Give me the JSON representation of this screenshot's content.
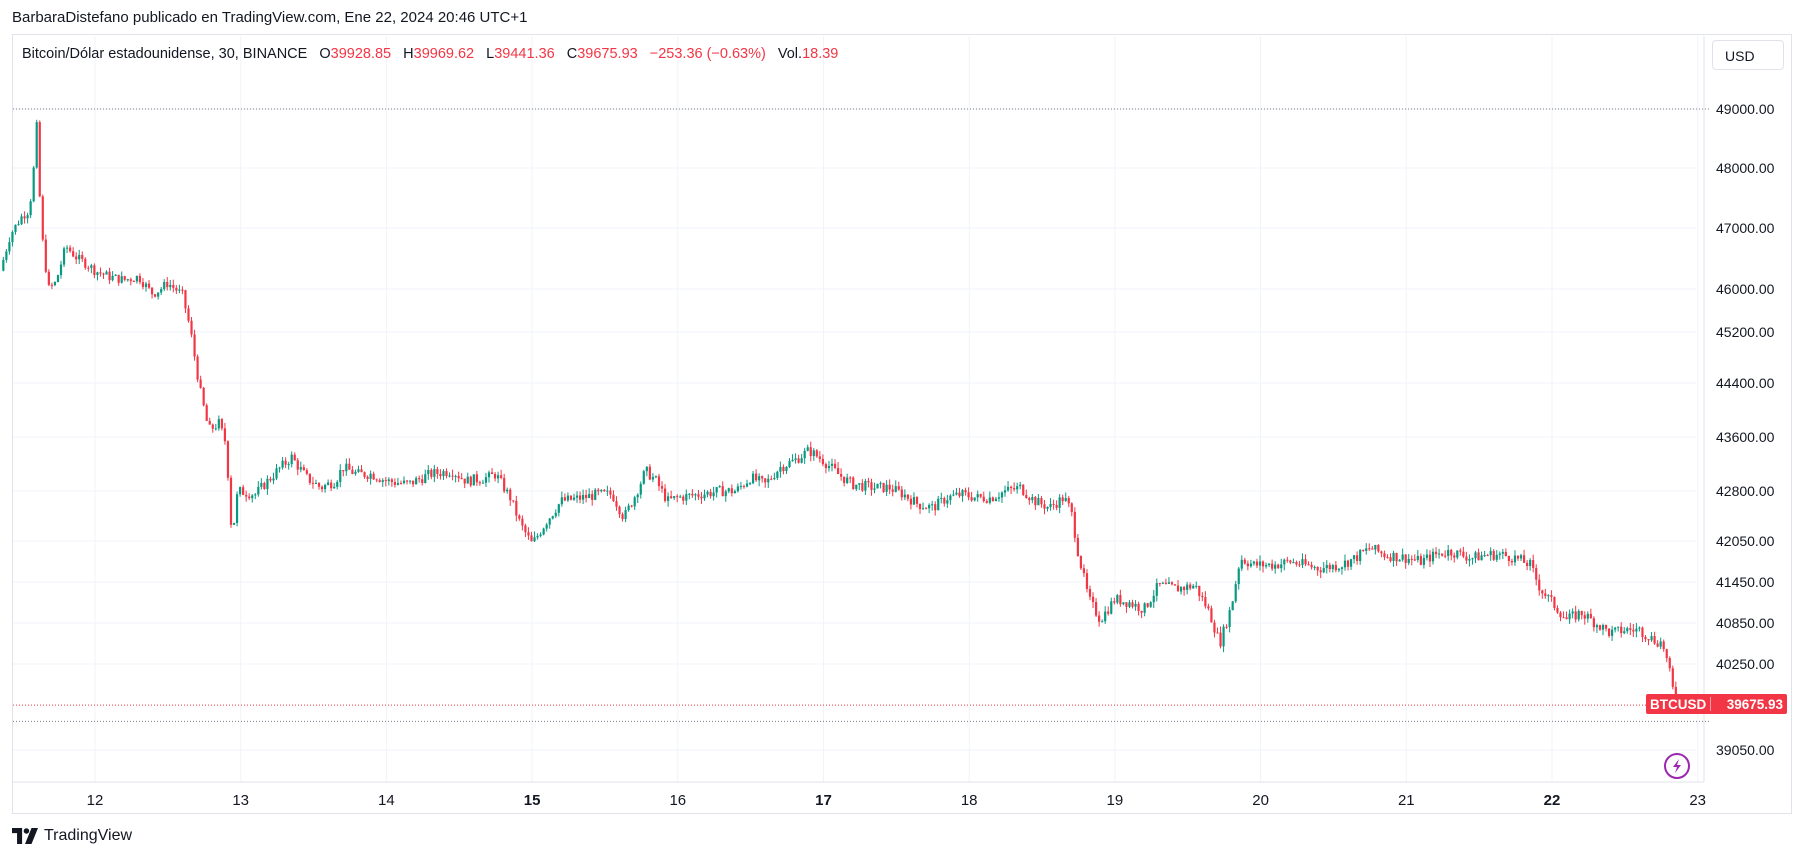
{
  "publisher_line": "BarbaraDistefano publicado en TradingView.com, Ene 22, 2024 20:46 UTC+1",
  "legend": {
    "symbol": "Bitcoin/Dólar estadounidense, 30, BINANCE",
    "open_label": "O",
    "open": "39928.85",
    "high_label": "H",
    "high": "39969.62",
    "low_label": "L",
    "low": "39441.36",
    "close_label": "C",
    "close": "39675.93",
    "change": "−253.36 (−0.63%)",
    "vol_label": "Vol.",
    "vol": "18.39"
  },
  "currency": "USD",
  "price_tag": {
    "symbol": "BTCUSD",
    "price": "39675.93"
  },
  "footer_brand": "TradingView",
  "colors": {
    "up": "#089981",
    "down": "#f23645",
    "grid": "#f0f3fa",
    "axis_text": "#131722"
  },
  "chart_data": {
    "type": "candlestick",
    "timeframe_minutes": 30,
    "y_axis": {
      "ticks": [
        39050,
        40250,
        40850,
        41450,
        42050,
        42800,
        43600,
        44400,
        45200,
        46000,
        47000,
        48000,
        49000
      ]
    },
    "x_axis": {
      "ticks": [
        "12",
        "13",
        "14",
        "15",
        "16",
        "17",
        "18",
        "19",
        "20",
        "21",
        "22",
        "23"
      ],
      "bold_ticks": [
        "15",
        "17",
        "22"
      ]
    },
    "reference_lines": {
      "high_dotted": 49000,
      "last_price": 39675.93,
      "low_dotted": 39450
    },
    "x_range_days": [
      11.35,
      23.05
    ],
    "anchors": [
      [
        11.35,
        46300
      ],
      [
        11.42,
        46900
      ],
      [
        11.5,
        47200
      ],
      [
        11.55,
        47300
      ],
      [
        11.58,
        48000
      ],
      [
        11.6,
        48700
      ],
      [
        11.63,
        47000
      ],
      [
        11.68,
        46000
      ],
      [
        11.73,
        46100
      ],
      [
        11.8,
        46700
      ],
      [
        11.88,
        46500
      ],
      [
        11.95,
        46400
      ],
      [
        12.0,
        46300
      ],
      [
        12.1,
        46200
      ],
      [
        12.2,
        46150
      ],
      [
        12.3,
        46200
      ],
      [
        12.4,
        45900
      ],
      [
        12.5,
        46100
      ],
      [
        12.6,
        45900
      ],
      [
        12.65,
        45300
      ],
      [
        12.72,
        44300
      ],
      [
        12.78,
        43700
      ],
      [
        12.85,
        43800
      ],
      [
        12.9,
        43500
      ],
      [
        12.94,
        42100
      ],
      [
        12.98,
        42800
      ],
      [
        13.1,
        42750
      ],
      [
        13.25,
        43100
      ],
      [
        13.35,
        43300
      ],
      [
        13.45,
        43000
      ],
      [
        13.55,
        42850
      ],
      [
        13.65,
        42950
      ],
      [
        13.7,
        43150
      ],
      [
        13.8,
        43050
      ],
      [
        13.9,
        43050
      ],
      [
        14.0,
        42950
      ],
      [
        14.15,
        42900
      ],
      [
        14.3,
        43050
      ],
      [
        14.45,
        43100
      ],
      [
        14.55,
        42950
      ],
      [
        14.7,
        43000
      ],
      [
        14.75,
        43050
      ],
      [
        14.85,
        42700
      ],
      [
        14.92,
        42300
      ],
      [
        15.0,
        42000
      ],
      [
        15.1,
        42350
      ],
      [
        15.2,
        42650
      ],
      [
        15.35,
        42700
      ],
      [
        15.45,
        42750
      ],
      [
        15.55,
        42750
      ],
      [
        15.63,
        42400
      ],
      [
        15.7,
        42700
      ],
      [
        15.78,
        43100
      ],
      [
        15.85,
        42950
      ],
      [
        15.93,
        42650
      ],
      [
        16.0,
        42700
      ],
      [
        16.15,
        42750
      ],
      [
        16.3,
        42800
      ],
      [
        16.4,
        42800
      ],
      [
        16.5,
        43000
      ],
      [
        16.6,
        42900
      ],
      [
        16.7,
        43150
      ],
      [
        16.8,
        43250
      ],
      [
        16.9,
        43400
      ],
      [
        17.0,
        43250
      ],
      [
        17.1,
        43050
      ],
      [
        17.2,
        42900
      ],
      [
        17.35,
        42850
      ],
      [
        17.45,
        42850
      ],
      [
        17.55,
        42750
      ],
      [
        17.65,
        42600
      ],
      [
        17.75,
        42550
      ],
      [
        17.85,
        42700
      ],
      [
        17.95,
        42750
      ],
      [
        18.05,
        42700
      ],
      [
        18.15,
        42700
      ],
      [
        18.25,
        42800
      ],
      [
        18.35,
        42850
      ],
      [
        18.45,
        42650
      ],
      [
        18.55,
        42550
      ],
      [
        18.65,
        42700
      ],
      [
        18.7,
        42500
      ],
      [
        18.75,
        41850
      ],
      [
        18.82,
        41200
      ],
      [
        18.9,
        40900
      ],
      [
        19.0,
        41200
      ],
      [
        19.1,
        41150
      ],
      [
        19.2,
        41050
      ],
      [
        19.3,
        41400
      ],
      [
        19.42,
        41350
      ],
      [
        19.55,
        41400
      ],
      [
        19.65,
        41000
      ],
      [
        19.72,
        40550
      ],
      [
        19.8,
        41100
      ],
      [
        19.86,
        41800
      ],
      [
        19.95,
        41700
      ],
      [
        20.1,
        41700
      ],
      [
        20.2,
        41750
      ],
      [
        20.3,
        41700
      ],
      [
        20.4,
        41650
      ],
      [
        20.55,
        41700
      ],
      [
        20.65,
        41800
      ],
      [
        20.75,
        41950
      ],
      [
        20.85,
        41850
      ],
      [
        21.0,
        41800
      ],
      [
        21.1,
        41750
      ],
      [
        21.2,
        41850
      ],
      [
        21.3,
        41900
      ],
      [
        21.45,
        41800
      ],
      [
        21.55,
        41850
      ],
      [
        21.65,
        41850
      ],
      [
        21.75,
        41800
      ],
      [
        21.85,
        41700
      ],
      [
        21.92,
        41350
      ],
      [
        22.0,
        41150
      ],
      [
        22.1,
        40900
      ],
      [
        22.2,
        41000
      ],
      [
        22.3,
        40850
      ],
      [
        22.4,
        40700
      ],
      [
        22.5,
        40750
      ],
      [
        22.6,
        40750
      ],
      [
        22.7,
        40600
      ],
      [
        22.76,
        40550
      ],
      [
        22.8,
        40200
      ],
      [
        22.85,
        39675.93
      ]
    ]
  }
}
